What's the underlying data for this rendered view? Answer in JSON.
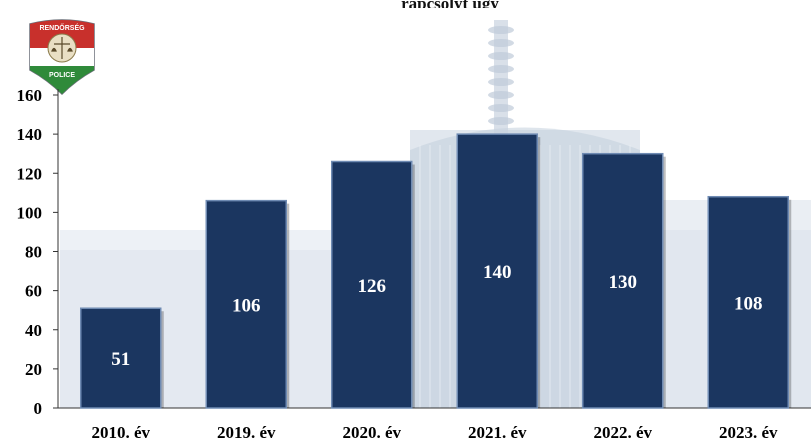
{
  "header": {
    "title_fragment": "rapcsolyt ugy"
  },
  "logo": {
    "top_text": "RENDŐRSÉG",
    "bottom_text": "POLICE"
  },
  "colors": {
    "bar": "#1b3660",
    "bar_edge": "#6f8bb3",
    "axis": "#333333",
    "text": "#000000"
  },
  "chart_data": {
    "type": "bar",
    "categories": [
      "2010. év",
      "2019. év",
      "2020. év",
      "2021. év",
      "2022. év",
      "2023. év"
    ],
    "values": [
      51,
      106,
      126,
      140,
      130,
      108
    ],
    "y_ticks": [
      "0",
      "20",
      "40",
      "60",
      "80",
      "100",
      "120",
      "140",
      "160"
    ],
    "ylim": [
      0,
      160
    ],
    "grid": false,
    "legend": "none"
  }
}
